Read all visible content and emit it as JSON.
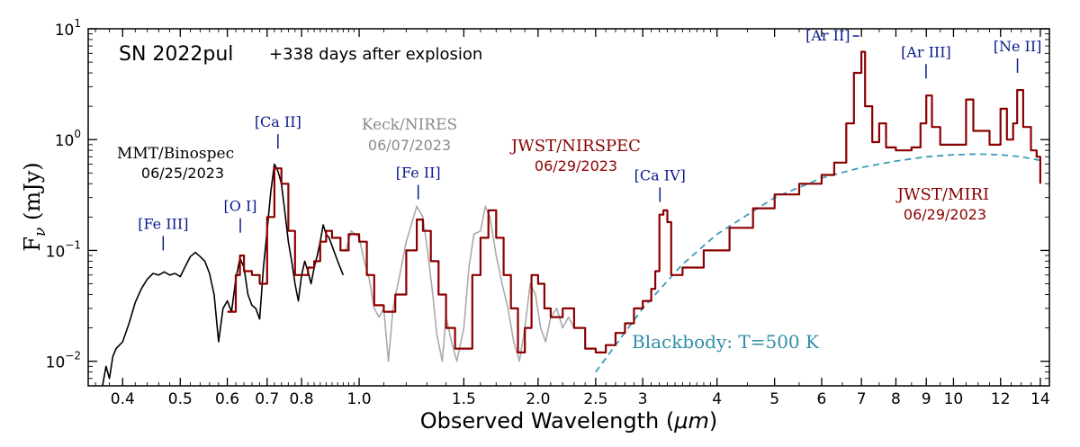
{
  "chart_data": {
    "type": "line",
    "x_scale": "log",
    "y_scale": "log",
    "xlim": [
      0.35,
      14.5
    ],
    "ylim": [
      0.006,
      10
    ],
    "xlabel_main": "Observed Wavelength (",
    "xlabel_unit": "μm",
    "xlabel_close": ")",
    "ylabel_main": "F",
    "ylabel_sub": "ν",
    "ylabel_unit": " (mJy)",
    "x_ticks": [
      {
        "value": 0.4,
        "label": "0.4"
      },
      {
        "value": 0.5,
        "label": "0.5"
      },
      {
        "value": 0.6,
        "label": "0.6"
      },
      {
        "value": 0.7,
        "label": "0.7"
      },
      {
        "value": 0.8,
        "label": "0.8"
      },
      {
        "value": 1.0,
        "label": "1.0"
      },
      {
        "value": 1.5,
        "label": "1.5"
      },
      {
        "value": 2.0,
        "label": "2.0"
      },
      {
        "value": 2.5,
        "label": "2.5"
      },
      {
        "value": 3,
        "label": "3"
      },
      {
        "value": 4,
        "label": "4"
      },
      {
        "value": 5,
        "label": "5"
      },
      {
        "value": 6,
        "label": "6"
      },
      {
        "value": 7,
        "label": "7"
      },
      {
        "value": 8,
        "label": "8"
      },
      {
        "value": 9,
        "label": "9"
      },
      {
        "value": 10,
        "label": "10"
      },
      {
        "value": 12,
        "label": "12"
      },
      {
        "value": 14,
        "label": "14"
      }
    ],
    "y_ticks": [
      {
        "value": 0.01,
        "base": "10",
        "exp": "−2"
      },
      {
        "value": 0.1,
        "base": "10",
        "exp": "−1"
      },
      {
        "value": 1,
        "base": "10",
        "exp": "0"
      },
      {
        "value": 10,
        "base": "10",
        "exp": "1"
      }
    ],
    "object_name": "SN 2022pul",
    "epoch": "+338 days after explosion",
    "series": [
      {
        "name": "MMT/Binospec",
        "date": "06/25/2023",
        "color": "#000000",
        "points": [
          [
            0.37,
            0.006
          ],
          [
            0.375,
            0.009
          ],
          [
            0.38,
            0.007
          ],
          [
            0.385,
            0.011
          ],
          [
            0.39,
            0.013
          ],
          [
            0.4,
            0.015
          ],
          [
            0.41,
            0.022
          ],
          [
            0.42,
            0.034
          ],
          [
            0.43,
            0.045
          ],
          [
            0.44,
            0.055
          ],
          [
            0.45,
            0.062
          ],
          [
            0.46,
            0.06
          ],
          [
            0.47,
            0.064
          ],
          [
            0.48,
            0.06
          ],
          [
            0.49,
            0.062
          ],
          [
            0.5,
            0.058
          ],
          [
            0.51,
            0.072
          ],
          [
            0.52,
            0.088
          ],
          [
            0.53,
            0.096
          ],
          [
            0.54,
            0.088
          ],
          [
            0.55,
            0.08
          ],
          [
            0.56,
            0.062
          ],
          [
            0.57,
            0.04
          ],
          [
            0.58,
            0.015
          ],
          [
            0.59,
            0.03
          ],
          [
            0.6,
            0.035
          ],
          [
            0.61,
            0.028
          ],
          [
            0.62,
            0.055
          ],
          [
            0.63,
            0.085
          ],
          [
            0.64,
            0.07
          ],
          [
            0.65,
            0.04
          ],
          [
            0.66,
            0.032
          ],
          [
            0.67,
            0.03
          ],
          [
            0.68,
            0.024
          ],
          [
            0.69,
            0.07
          ],
          [
            0.7,
            0.15
          ],
          [
            0.71,
            0.34
          ],
          [
            0.72,
            0.6
          ],
          [
            0.73,
            0.52
          ],
          [
            0.74,
            0.4
          ],
          [
            0.75,
            0.22
          ],
          [
            0.76,
            0.12
          ],
          [
            0.77,
            0.08
          ],
          [
            0.78,
            0.05
          ],
          [
            0.79,
            0.035
          ],
          [
            0.8,
            0.06
          ],
          [
            0.81,
            0.08
          ],
          [
            0.82,
            0.065
          ],
          [
            0.83,
            0.05
          ],
          [
            0.84,
            0.07
          ],
          [
            0.85,
            0.09
          ],
          [
            0.86,
            0.12
          ],
          [
            0.87,
            0.17
          ],
          [
            0.88,
            0.14
          ],
          [
            0.89,
            0.13
          ],
          [
            0.9,
            0.11
          ],
          [
            0.92,
            0.08
          ],
          [
            0.94,
            0.06
          ]
        ]
      },
      {
        "name": "Keck/NIRES",
        "date": "06/07/2023",
        "color": "#aaaaaa",
        "points": [
          [
            0.95,
            0.1
          ],
          [
            0.97,
            0.15
          ],
          [
            1.0,
            0.13
          ],
          [
            1.02,
            0.08
          ],
          [
            1.04,
            0.055
          ],
          [
            1.06,
            0.03
          ],
          [
            1.08,
            0.025
          ],
          [
            1.1,
            0.03
          ],
          [
            1.12,
            0.01
          ],
          [
            1.14,
            0.03
          ],
          [
            1.17,
            0.06
          ],
          [
            1.2,
            0.12
          ],
          [
            1.25,
            0.25
          ],
          [
            1.28,
            0.2
          ],
          [
            1.3,
            0.11
          ],
          [
            1.33,
            0.04
          ],
          [
            1.35,
            0.018
          ],
          [
            1.38,
            0.01
          ],
          [
            1.4,
            0.025
          ],
          [
            1.43,
            0.015
          ],
          [
            1.46,
            0.01
          ],
          [
            1.5,
            0.02
          ],
          [
            1.53,
            0.07
          ],
          [
            1.56,
            0.14
          ],
          [
            1.6,
            0.15
          ],
          [
            1.63,
            0.25
          ],
          [
            1.66,
            0.2
          ],
          [
            1.7,
            0.09
          ],
          [
            1.74,
            0.05
          ],
          [
            1.78,
            0.03
          ],
          [
            1.82,
            0.015
          ],
          [
            1.86,
            0.01
          ],
          [
            1.9,
            0.02
          ],
          [
            1.94,
            0.05
          ],
          [
            1.98,
            0.04
          ],
          [
            2.02,
            0.02
          ],
          [
            2.06,
            0.015
          ],
          [
            2.1,
            0.025
          ],
          [
            2.15,
            0.03
          ],
          [
            2.2,
            0.02
          ],
          [
            2.25,
            0.025
          ],
          [
            2.3,
            0.02
          ]
        ]
      },
      {
        "name": "JWST/NIRSPEC",
        "date": "06/29/2023",
        "color": "#8b0000",
        "points": [
          [
            0.6,
            0.028
          ],
          [
            0.62,
            0.06
          ],
          [
            0.63,
            0.09
          ],
          [
            0.64,
            0.065
          ],
          [
            0.66,
            0.06
          ],
          [
            0.68,
            0.05
          ],
          [
            0.7,
            0.2
          ],
          [
            0.72,
            0.55
          ],
          [
            0.74,
            0.4
          ],
          [
            0.76,
            0.15
          ],
          [
            0.78,
            0.06
          ],
          [
            0.8,
            0.06
          ],
          [
            0.82,
            0.07
          ],
          [
            0.84,
            0.08
          ],
          [
            0.86,
            0.12
          ],
          [
            0.88,
            0.15
          ],
          [
            0.9,
            0.13
          ],
          [
            0.93,
            0.1
          ],
          [
            0.96,
            0.14
          ],
          [
            1.0,
            0.12
          ],
          [
            1.03,
            0.06
          ],
          [
            1.06,
            0.032
          ],
          [
            1.1,
            0.028
          ],
          [
            1.15,
            0.04
          ],
          [
            1.2,
            0.1
          ],
          [
            1.25,
            0.19
          ],
          [
            1.28,
            0.15
          ],
          [
            1.32,
            0.08
          ],
          [
            1.36,
            0.04
          ],
          [
            1.4,
            0.02
          ],
          [
            1.45,
            0.013
          ],
          [
            1.5,
            0.013
          ],
          [
            1.55,
            0.06
          ],
          [
            1.6,
            0.13
          ],
          [
            1.65,
            0.23
          ],
          [
            1.7,
            0.13
          ],
          [
            1.75,
            0.06
          ],
          [
            1.8,
            0.03
          ],
          [
            1.85,
            0.012
          ],
          [
            1.9,
            0.02
          ],
          [
            1.95,
            0.06
          ],
          [
            2.0,
            0.05
          ],
          [
            2.05,
            0.03
          ],
          [
            2.1,
            0.025
          ],
          [
            2.2,
            0.03
          ],
          [
            2.3,
            0.02
          ],
          [
            2.4,
            0.013
          ],
          [
            2.5,
            0.012
          ],
          [
            2.6,
            0.014
          ],
          [
            2.7,
            0.018
          ],
          [
            2.8,
            0.022
          ],
          [
            2.9,
            0.03
          ],
          [
            3.0,
            0.035
          ],
          [
            3.1,
            0.045
          ],
          [
            3.15,
            0.065
          ],
          [
            3.2,
            0.21
          ],
          [
            3.25,
            0.23
          ],
          [
            3.3,
            0.18
          ],
          [
            3.35,
            0.06
          ],
          [
            3.5,
            0.07
          ],
          [
            3.8,
            0.1
          ],
          [
            4.2,
            0.16
          ],
          [
            4.6,
            0.24
          ],
          [
            5.0,
            0.32
          ],
          [
            5.5,
            0.4
          ],
          [
            6.0,
            0.48
          ],
          [
            6.3,
            0.62
          ],
          [
            6.6,
            1.4
          ],
          [
            6.8,
            4.0
          ],
          [
            7.0,
            6.2
          ],
          [
            7.1,
            2.0
          ],
          [
            7.3,
            0.95
          ],
          [
            7.5,
            1.4
          ],
          [
            7.7,
            0.85
          ],
          [
            8.0,
            0.8
          ],
          [
            8.5,
            0.85
          ],
          [
            8.8,
            1.4
          ],
          [
            9.0,
            2.5
          ],
          [
            9.2,
            1.3
          ],
          [
            9.5,
            0.9
          ],
          [
            10.0,
            0.9
          ],
          [
            10.5,
            2.3
          ],
          [
            10.8,
            1.2
          ],
          [
            11.5,
            0.9
          ],
          [
            12.0,
            1.9
          ],
          [
            12.3,
            1.0
          ],
          [
            12.6,
            1.4
          ],
          [
            12.8,
            2.8
          ],
          [
            13.1,
            1.3
          ],
          [
            13.5,
            0.8
          ],
          [
            13.8,
            0.7
          ],
          [
            14.0,
            0.4
          ]
        ]
      },
      {
        "name": "Blackbody: T=500 K",
        "color": "#3a9ab8",
        "style": "dashed",
        "temperature_K": 500,
        "points": [
          [
            2.5,
            0.008
          ],
          [
            3.0,
            0.03
          ],
          [
            3.5,
            0.075
          ],
          [
            4.0,
            0.14
          ],
          [
            5.0,
            0.3
          ],
          [
            6.0,
            0.45
          ],
          [
            7.0,
            0.56
          ],
          [
            8.0,
            0.64
          ],
          [
            9.0,
            0.7
          ],
          [
            10.0,
            0.73
          ],
          [
            11.0,
            0.74
          ],
          [
            12.0,
            0.73
          ],
          [
            13.0,
            0.7
          ],
          [
            14.0,
            0.65
          ]
        ]
      }
    ],
    "line_annotations": [
      {
        "label": "[Fe III]",
        "x": 0.468,
        "y": 0.135
      },
      {
        "label": "[O I]",
        "x": 0.631,
        "y": 0.195
      },
      {
        "label": "[Ca II]",
        "x": 0.73,
        "y": 1.12
      },
      {
        "label": "[Fe II]",
        "x": 1.257,
        "y": 0.39
      },
      {
        "label": "[Ca IV]",
        "x": 3.207,
        "y": 0.37
      },
      {
        "label": "[Ar II]",
        "x": 6.985,
        "y": 8.6
      },
      {
        "label": "[Ar III]",
        "x": 8.991,
        "y": 4.8
      },
      {
        "label": "[Ne II]",
        "x": 12.814,
        "y": 5.4
      }
    ]
  }
}
